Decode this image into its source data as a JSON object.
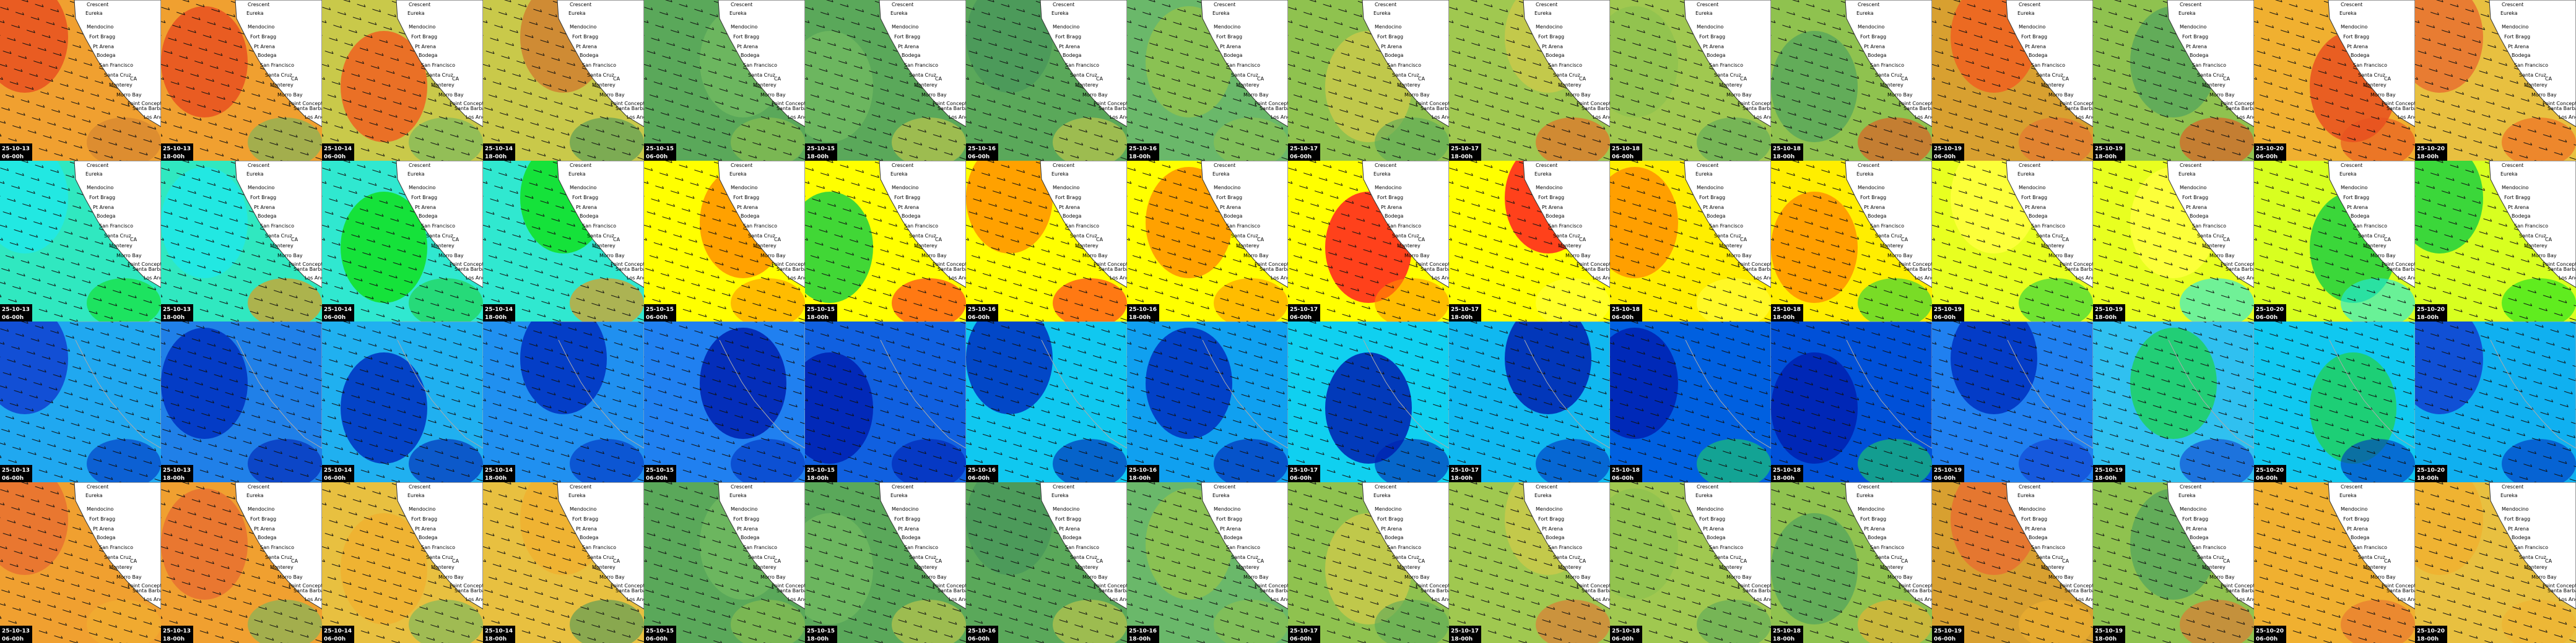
{
  "columns": [
    {
      "date": "25-10-13",
      "time": "06-00h"
    },
    {
      "date": "25-10-13",
      "time": "18-00h"
    },
    {
      "date": "25-10-14",
      "time": "06-00h"
    },
    {
      "date": "25-10-14",
      "time": "18-00h"
    },
    {
      "date": "25-10-15",
      "time": "06-00h"
    },
    {
      "date": "25-10-15",
      "time": "18-00h"
    },
    {
      "date": "25-10-16",
      "time": "06-00h"
    },
    {
      "date": "25-10-16",
      "time": "18-00h"
    },
    {
      "date": "25-10-17",
      "time": "06-00h"
    },
    {
      "date": "25-10-17",
      "time": "18-00h"
    },
    {
      "date": "25-10-18",
      "time": "06-00h"
    },
    {
      "date": "25-10-18",
      "time": "18-00h"
    },
    {
      "date": "25-10-19",
      "time": "06-00h"
    },
    {
      "date": "25-10-19",
      "time": "18-00h"
    },
    {
      "date": "25-10-20",
      "time": "06-00h"
    },
    {
      "date": "25-10-20",
      "time": "18-00h"
    }
  ],
  "places": [
    "Crescent",
    "Eureka",
    "Mendocino",
    "Fort Bragg",
    "Pt Arena",
    "Bodega",
    "San Francisco",
    "Santa Cruz",
    "CA",
    "Monterey",
    "Morro Bay",
    "Point Conception",
    "Santa Barbara",
    "Los Angeles"
  ]
}
